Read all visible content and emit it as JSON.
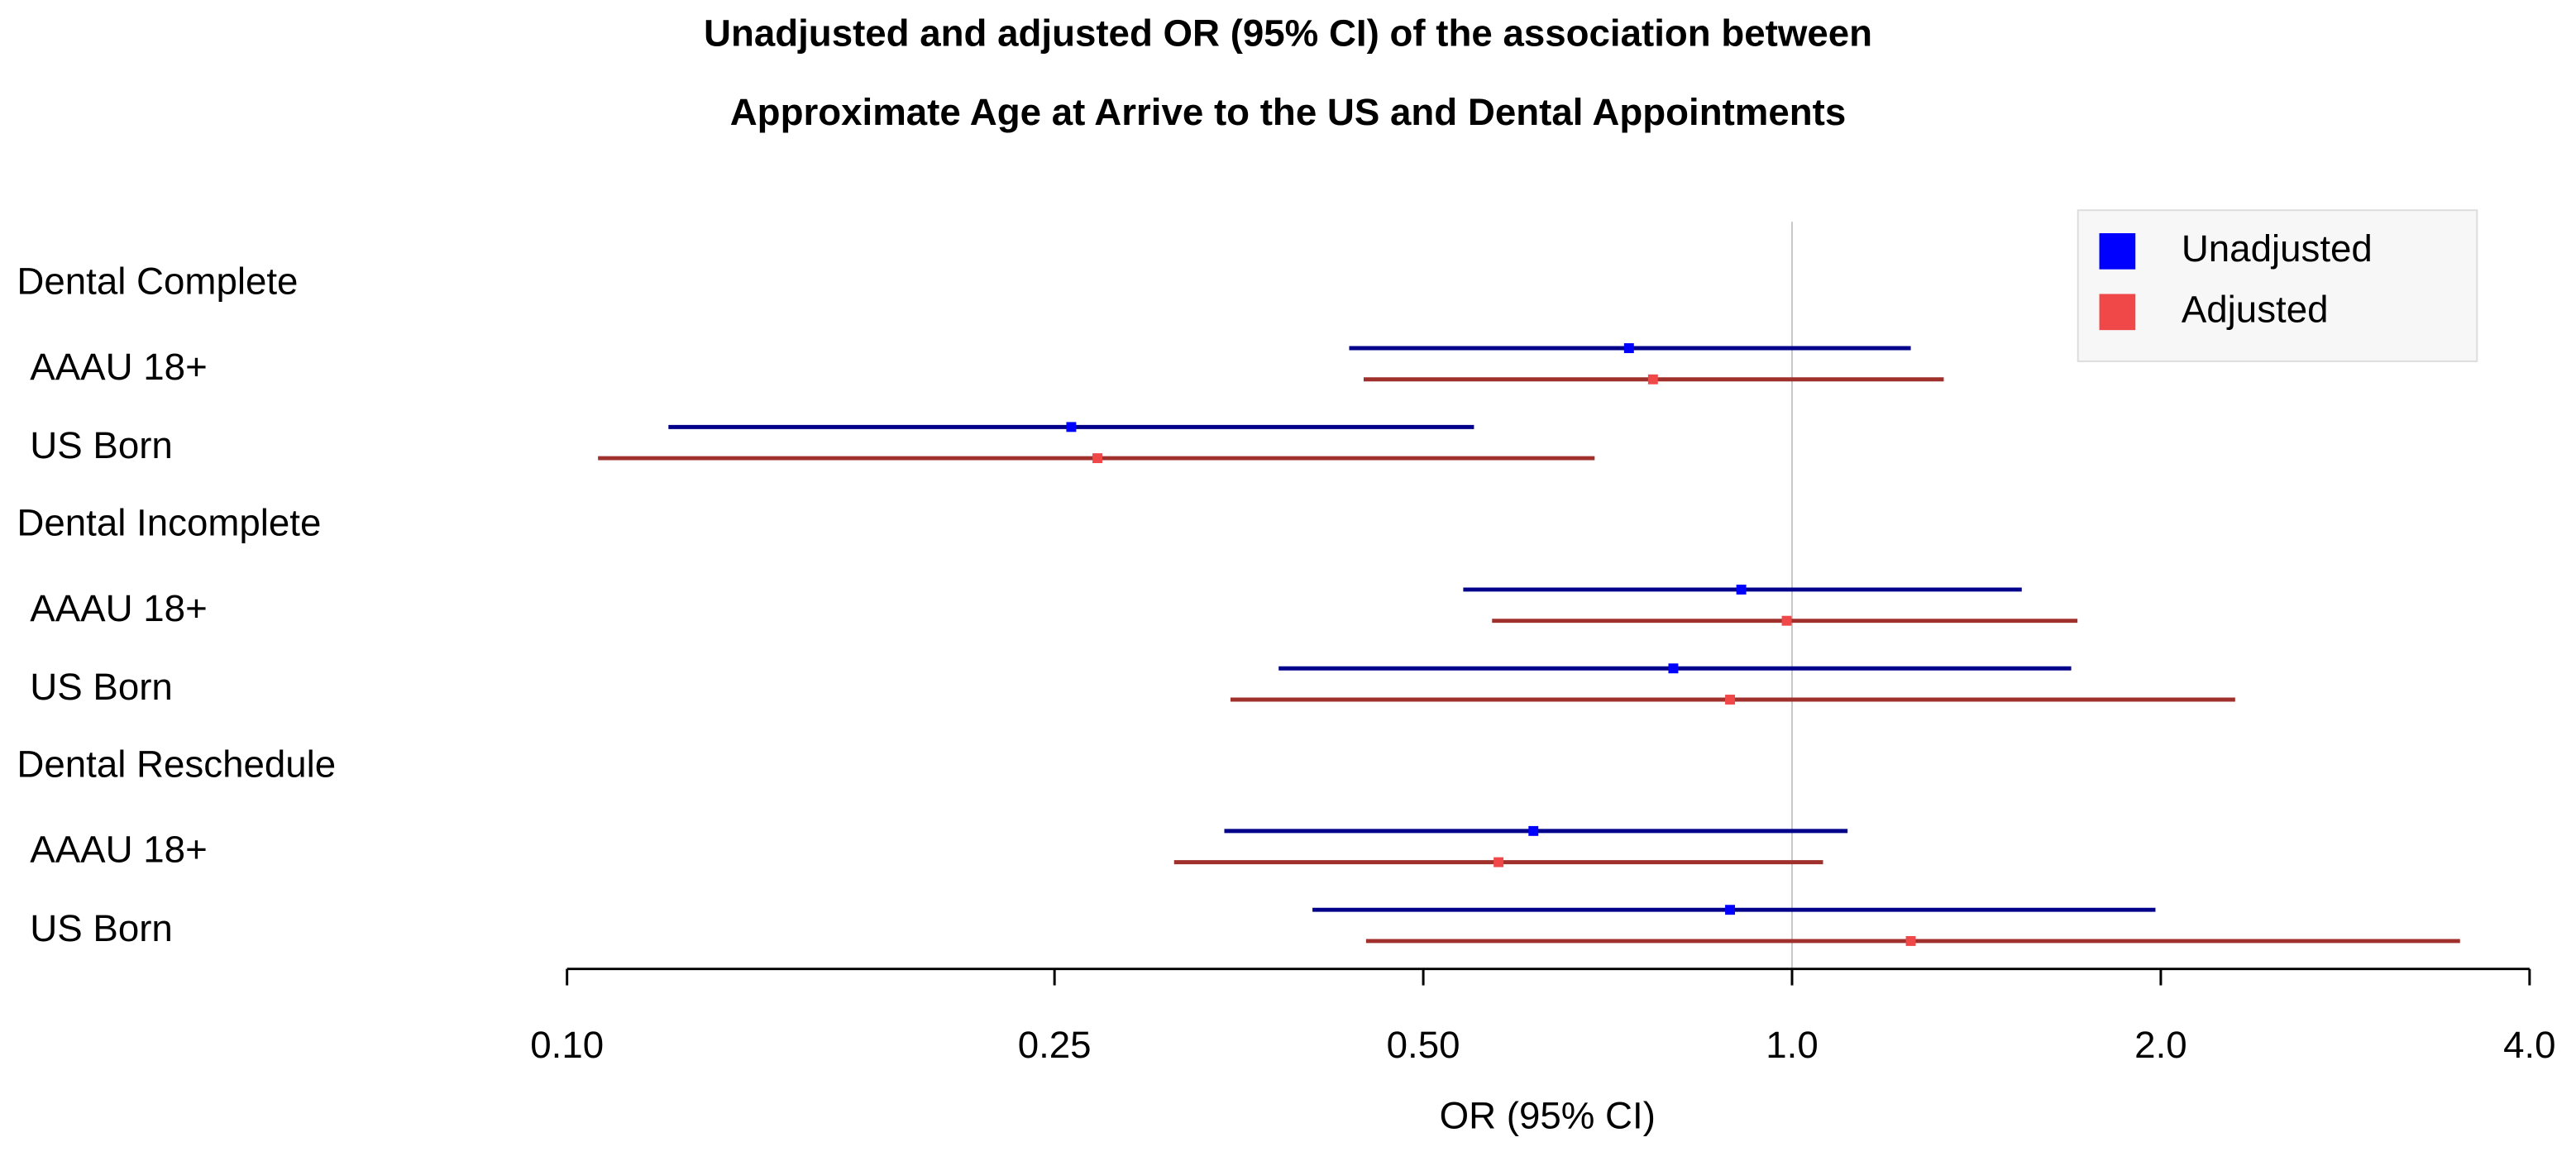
{
  "chart_data": {
    "type": "forest",
    "title": [
      "Unadjusted and adjusted OR (95% CI) of the association between",
      "Approximate Age at Arrive to the US and  Dental Appointments"
    ],
    "x_label": "OR (95% CI)",
    "log_scale": true,
    "xlim": [
      0.1,
      4.0
    ],
    "xticks": [
      {
        "value": 0.1,
        "label": "0.10"
      },
      0.25,
      {
        "value": 0.5,
        "label": "0.50"
      },
      {
        "value": 1,
        "label": "1.0"
      },
      {
        "value": 2,
        "label": "2.0"
      },
      {
        "value": 4,
        "label": "4.0"
      }
    ],
    "reference_line": 1,
    "legend": "top-right",
    "groups": [
      {
        "name": "Dental Complete",
        "categories": [
          "AAAU 18+",
          "US Born"
        ]
      },
      {
        "name": "Dental Incomplete",
        "categories": [
          "AAAU 18+",
          "US Born"
        ]
      },
      {
        "name": "Dental Reschedule",
        "categories": [
          "AAAU 18+",
          "US Born"
        ]
      }
    ],
    "series": [
      {
        "name": "Unadjusted",
        "color": "#0000ff",
        "line_color": "#00008b",
        "values": [
          0.736,
          0.258,
          0.909,
          0.8,
          0.615,
          0.89
        ],
        "lower": [
          0.435,
          0.121,
          0.539,
          0.381,
          0.344,
          0.406
        ],
        "upper": [
          1.25,
          0.55,
          1.54,
          1.69,
          1.11,
          1.98
        ]
      },
      {
        "name": "Adjusted",
        "color": "#f04848",
        "line_color": "#a0302c",
        "values": [
          0.77,
          0.271,
          0.99,
          0.89,
          0.576,
          1.25
        ],
        "lower": [
          0.447,
          0.106,
          0.569,
          0.348,
          0.313,
          0.449
        ],
        "upper": [
          1.33,
          0.69,
          1.71,
          2.3,
          1.06,
          3.51
        ]
      }
    ]
  }
}
